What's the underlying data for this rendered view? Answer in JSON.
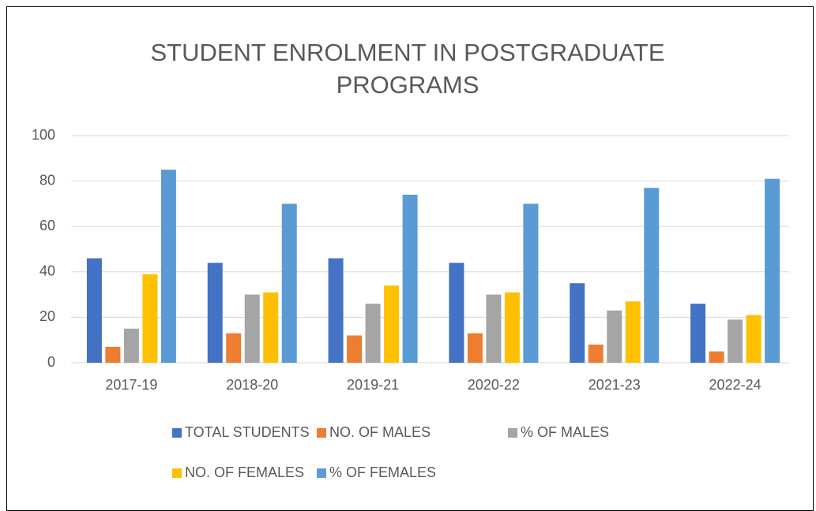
{
  "chart_data": {
    "type": "bar",
    "title": "STUDENT ENROLMENT IN POSTGRADUATE PROGRAMS",
    "categories": [
      "2017-19",
      "2018-20",
      "2019-21",
      "2020-22",
      "2021-23",
      "2022-24"
    ],
    "series": [
      {
        "name": "TOTAL STUDENTS",
        "color": "#4472c4",
        "values": [
          46,
          44,
          46,
          44,
          35,
          26
        ]
      },
      {
        "name": "NO. OF MALES",
        "color": "#ed7d31",
        "values": [
          7,
          13,
          12,
          13,
          8,
          5
        ]
      },
      {
        "name": "% OF MALES",
        "color": "#a5a5a5",
        "values": [
          15,
          30,
          26,
          30,
          23,
          19
        ]
      },
      {
        "name": "NO. OF FEMALES",
        "color": "#ffc000",
        "values": [
          39,
          31,
          34,
          31,
          27,
          21
        ]
      },
      {
        "name": "% OF FEMALES",
        "color": "#5b9bd5",
        "values": [
          85,
          70,
          74,
          70,
          77,
          81
        ]
      }
    ],
    "ylim": [
      0,
      100
    ],
    "yticks": [
      0,
      20,
      40,
      60,
      80,
      100
    ],
    "grid": true,
    "legend": "bottom"
  }
}
